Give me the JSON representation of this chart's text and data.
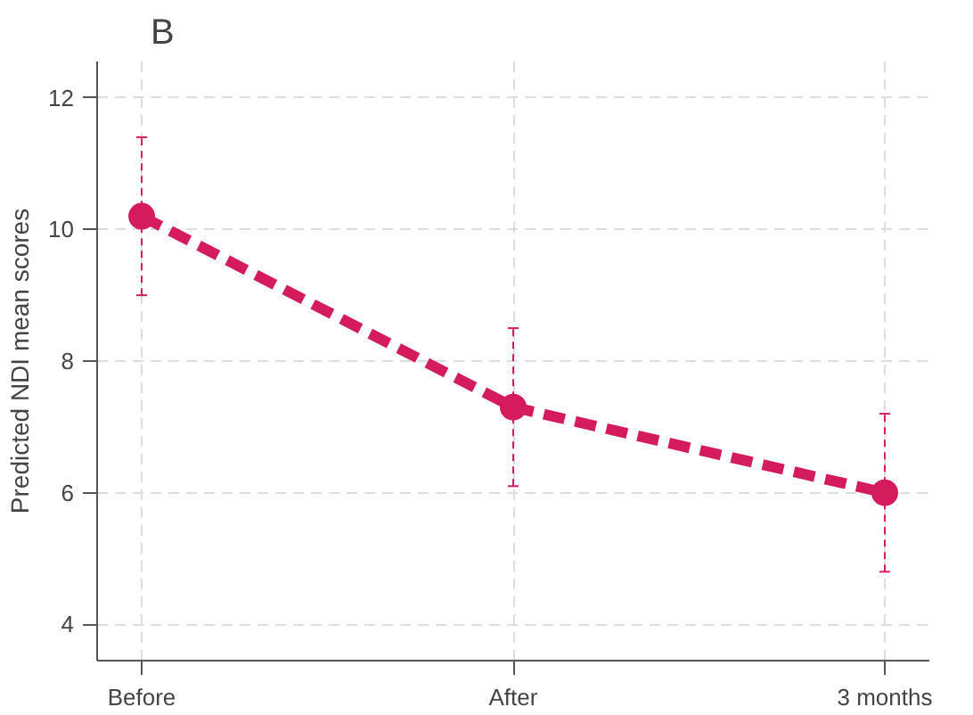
{
  "chart_data": {
    "type": "line",
    "title": "B",
    "ylabel": "Predicted NDI mean scores",
    "categories": [
      "Before",
      "After",
      "3 months"
    ],
    "ylim": [
      3.45,
      12.55
    ],
    "yticks": [
      4,
      6,
      8,
      10,
      12
    ],
    "series": [
      {
        "color": "#d41c5c",
        "values": [
          10.2,
          7.3,
          6.0
        ],
        "errors": [
          1.2,
          1.2,
          1.2
        ]
      }
    ],
    "grid": true,
    "marker": "circle",
    "line_style": "dashed"
  }
}
